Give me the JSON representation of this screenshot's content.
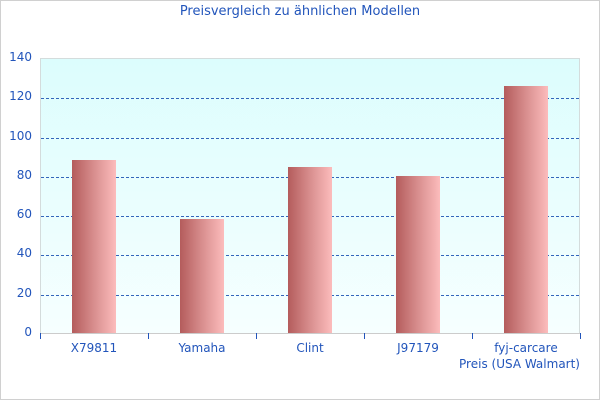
{
  "chart_data": {
    "type": "bar",
    "title": "Preisvergleich zu ähnlichen Modellen",
    "categories": [
      "X79811",
      "Yamaha",
      "Clint",
      "J97179",
      "fyj-carcare"
    ],
    "values": [
      88,
      58,
      84.5,
      80,
      125.8
    ],
    "xlabel": "Preis (USA Walmart)",
    "ylabel": "",
    "ylim": [
      0,
      140
    ],
    "yticks": [
      "0",
      "20",
      "40",
      "60",
      "80",
      "100",
      "120",
      "140"
    ],
    "grid": true,
    "legend": null
  },
  "colors": {
    "text": "#2255bb",
    "grid": "#3366bb",
    "bar_dark": "#b45c5c",
    "bar_light": "#fcbcbc",
    "plot_bg_top": "#dcfdfd",
    "plot_bg_bottom": "#f6ffff"
  }
}
